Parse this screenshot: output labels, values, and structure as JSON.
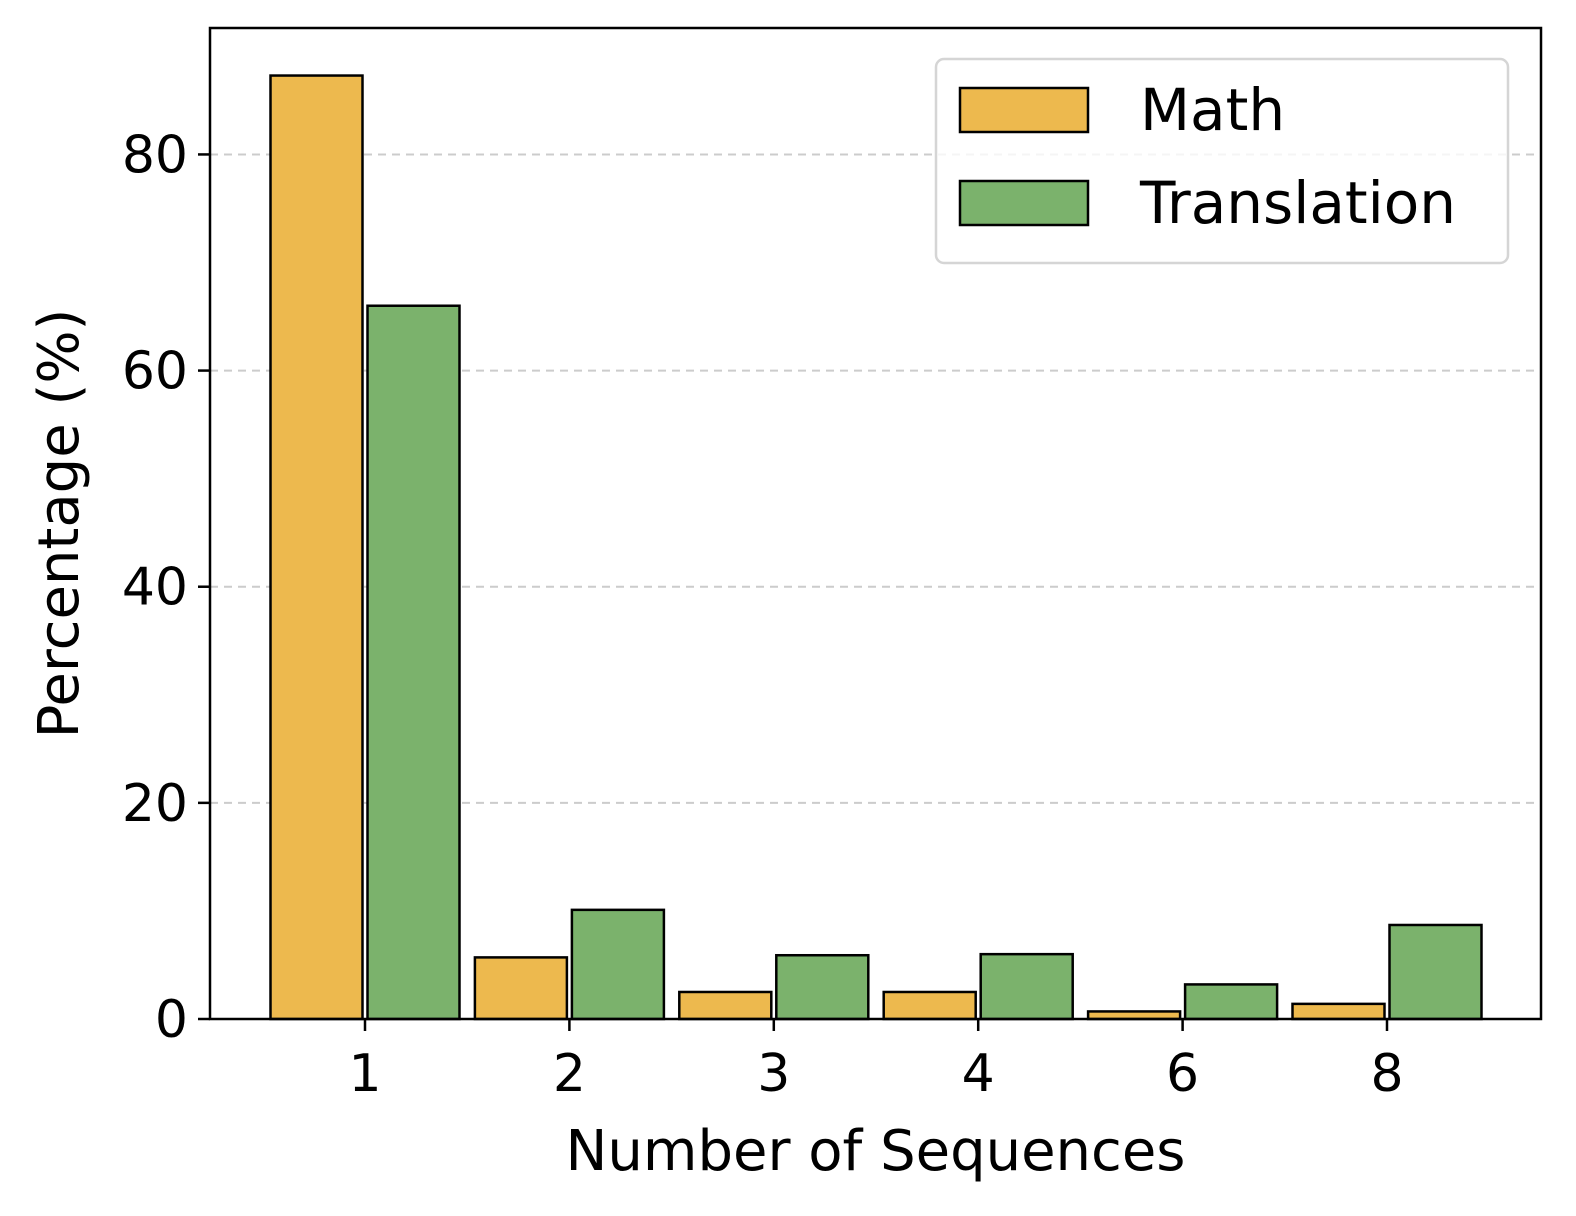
{
  "chart_data": {
    "type": "bar",
    "title": "",
    "xlabel": "Number of Sequences",
    "ylabel": "Percentage (%)",
    "categories": [
      "1",
      "2",
      "3",
      "4",
      "6",
      "8"
    ],
    "series": [
      {
        "name": "Math",
        "values": [
          87.3,
          5.7,
          2.5,
          2.5,
          0.7,
          1.4
        ],
        "color": "#EDB94E"
      },
      {
        "name": "Translation",
        "values": [
          66.0,
          10.1,
          5.9,
          6.0,
          3.2,
          8.7
        ],
        "color": "#7BB26C"
      }
    ],
    "yticks": [
      0,
      20,
      40,
      60,
      80
    ],
    "ylim": [
      0,
      91.7
    ],
    "grid": "horizontal dashed",
    "legend_position": "top-right"
  }
}
